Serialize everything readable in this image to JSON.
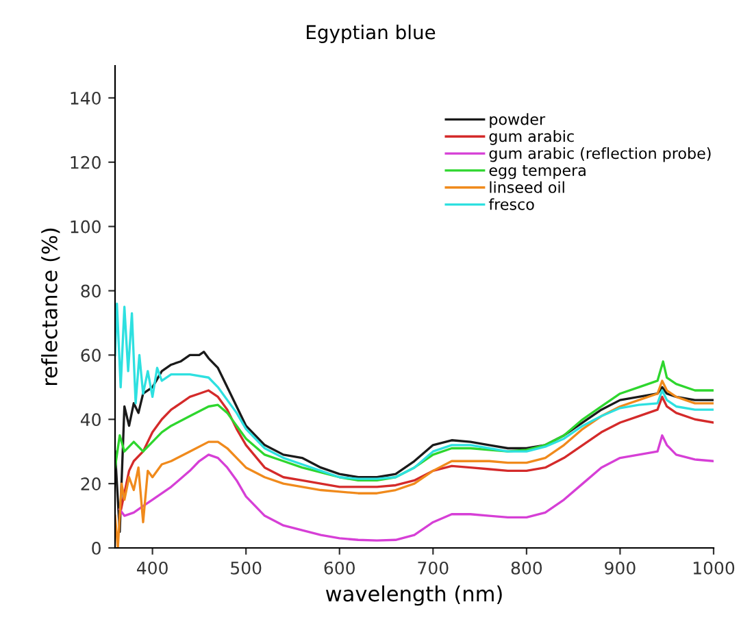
{
  "chart_data": {
    "type": "line",
    "title": "Egyptian blue",
    "xlabel": "wavelength (nm)",
    "ylabel": "reflectance (%)",
    "xlim": [
      360,
      1000
    ],
    "ylim": [
      0,
      150
    ],
    "xticks": [
      400,
      500,
      600,
      700,
      800,
      900,
      1000
    ],
    "yticks": [
      0,
      20,
      40,
      60,
      80,
      100,
      120,
      140
    ],
    "grid": false,
    "legend": "top right",
    "series": [
      {
        "name": "powder",
        "color": "#1a1a1a",
        "x": [
          360,
          365,
          370,
          375,
          380,
          385,
          390,
          400,
          410,
          420,
          430,
          440,
          450,
          455,
          460,
          470,
          480,
          490,
          500,
          520,
          540,
          560,
          580,
          600,
          620,
          640,
          660,
          680,
          700,
          720,
          740,
          760,
          780,
          800,
          820,
          840,
          860,
          880,
          900,
          920,
          940,
          945,
          950,
          960,
          980,
          1000
        ],
        "values": [
          30,
          5,
          44,
          38,
          45,
          42,
          48,
          50,
          55,
          57,
          58,
          60,
          60,
          61,
          59,
          56,
          50,
          44,
          38,
          32,
          29,
          28,
          25,
          23,
          22,
          22,
          23,
          27,
          32,
          33.5,
          33,
          32,
          31,
          31,
          32,
          35,
          39,
          43,
          46,
          47,
          48,
          50,
          48,
          47,
          46,
          46
        ]
      },
      {
        "name": "gum arabic",
        "color": "#d42a2a",
        "x": [
          365,
          375,
          380,
          390,
          400,
          410,
          420,
          430,
          440,
          450,
          460,
          470,
          480,
          490,
          500,
          520,
          540,
          560,
          580,
          600,
          620,
          640,
          660,
          680,
          700,
          720,
          740,
          760,
          780,
          800,
          820,
          840,
          860,
          880,
          900,
          920,
          940,
          945,
          950,
          960,
          980,
          1000
        ],
        "values": [
          10,
          24,
          27,
          30,
          36,
          40,
          43,
          45,
          47,
          48,
          49,
          47,
          43,
          37,
          32,
          25,
          22,
          21,
          20,
          19,
          19,
          19,
          19.5,
          21,
          24,
          25.5,
          25,
          24.5,
          24,
          24,
          25,
          28,
          32,
          36,
          39,
          41,
          43,
          47,
          44,
          42,
          40,
          39
        ]
      },
      {
        "name": "gum arabic (reflection probe)",
        "color": "#d63fd6",
        "x": [
          365,
          370,
          380,
          390,
          400,
          420,
          440,
          450,
          460,
          470,
          480,
          490,
          500,
          520,
          540,
          560,
          580,
          600,
          620,
          640,
          660,
          680,
          700,
          720,
          740,
          760,
          780,
          800,
          820,
          840,
          860,
          880,
          900,
          920,
          940,
          945,
          950,
          960,
          980,
          1000
        ],
        "values": [
          12,
          10,
          11,
          13,
          15,
          19,
          24,
          27,
          29,
          28,
          25,
          21,
          16,
          10,
          7,
          5.5,
          4,
          3,
          2.5,
          2.3,
          2.5,
          4,
          8,
          10.5,
          10.5,
          10,
          9.5,
          9.5,
          11,
          15,
          20,
          25,
          28,
          29,
          30,
          35,
          32,
          29,
          27.5,
          27
        ]
      },
      {
        "name": "egg tempera",
        "color": "#2ed62e",
        "x": [
          360,
          365,
          370,
          380,
          390,
          400,
          410,
          420,
          440,
          460,
          470,
          480,
          490,
          500,
          520,
          540,
          560,
          580,
          600,
          620,
          640,
          660,
          680,
          700,
          720,
          740,
          760,
          780,
          800,
          820,
          840,
          860,
          880,
          900,
          920,
          940,
          946,
          950,
          960,
          980,
          1000
        ],
        "values": [
          25,
          35,
          30,
          33,
          30,
          33,
          36,
          38,
          41,
          44,
          44.5,
          42,
          38,
          34,
          29,
          27,
          25,
          23.5,
          22,
          21,
          21,
          22,
          25,
          29,
          31,
          31,
          30.5,
          30,
          30.5,
          32,
          35,
          40,
          44,
          48,
          50,
          52,
          58,
          53,
          51,
          49,
          49
        ]
      },
      {
        "name": "linseed oil",
        "color": "#f08a1c",
        "x": [
          360,
          363,
          367,
          370,
          375,
          380,
          385,
          390,
          395,
          400,
          410,
          420,
          440,
          460,
          470,
          480,
          490,
          500,
          520,
          540,
          560,
          580,
          600,
          620,
          640,
          660,
          680,
          700,
          720,
          740,
          760,
          780,
          800,
          820,
          840,
          860,
          880,
          900,
          920,
          940,
          945,
          950,
          960,
          980,
          1000
        ],
        "values": [
          10,
          0,
          20,
          15,
          22,
          18,
          25,
          8,
          24,
          22,
          26,
          27,
          30,
          33,
          33,
          31,
          28,
          25,
          22,
          20,
          19,
          18,
          17.5,
          17,
          17,
          18,
          20,
          24,
          27,
          27,
          27,
          26.5,
          26.5,
          28,
          32,
          37,
          41,
          44,
          46,
          48,
          52,
          49,
          47,
          45,
          45
        ]
      },
      {
        "name": "fresco",
        "color": "#2ee0e0",
        "x": [
          360,
          362,
          366,
          370,
          374,
          378,
          382,
          386,
          390,
          395,
          400,
          405,
          410,
          420,
          440,
          460,
          470,
          480,
          490,
          500,
          520,
          540,
          560,
          580,
          600,
          620,
          640,
          660,
          680,
          700,
          720,
          740,
          760,
          780,
          800,
          820,
          840,
          860,
          880,
          900,
          920,
          940,
          945,
          950,
          960,
          980,
          1000
        ],
        "values": [
          60,
          76,
          50,
          75,
          55,
          73,
          45,
          60,
          48,
          55,
          47,
          56,
          52,
          54,
          54,
          53,
          50,
          46,
          42,
          37,
          31,
          28,
          26,
          24,
          22,
          21.5,
          21.5,
          22,
          25,
          30,
          32,
          32,
          31,
          30,
          30,
          31.5,
          34,
          38,
          41,
          43.5,
          44.5,
          45,
          49,
          46,
          44,
          43,
          43
        ]
      }
    ]
  }
}
